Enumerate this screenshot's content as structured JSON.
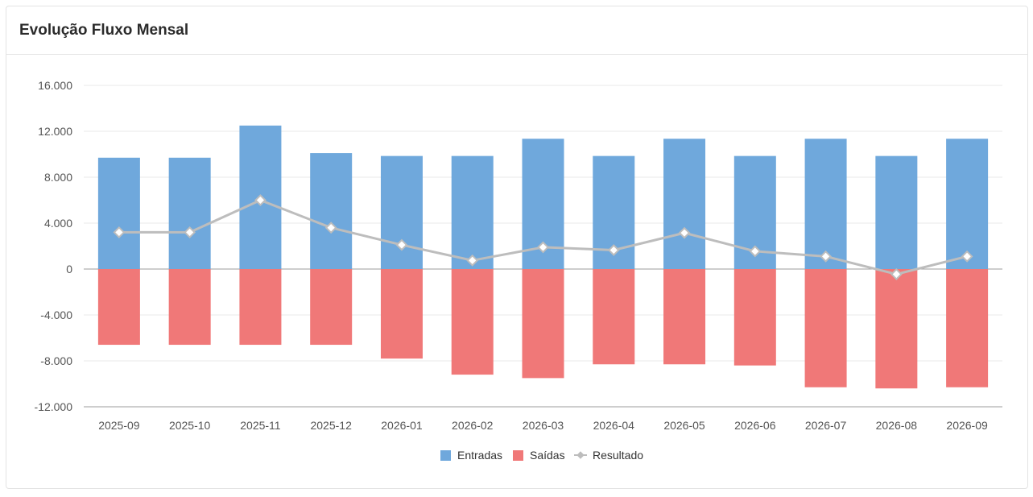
{
  "card": {
    "title": "Evolução Fluxo Mensal"
  },
  "colors": {
    "entradas": "#6fa8dc",
    "saidas": "#f07878",
    "resultado": "#bdbdbd"
  },
  "chart_data": {
    "type": "bar",
    "categories": [
      "2025-09",
      "2025-10",
      "2025-11",
      "2025-12",
      "2026-01",
      "2026-02",
      "2026-03",
      "2026-04",
      "2026-05",
      "2026-06",
      "2026-07",
      "2026-08",
      "2026-09"
    ],
    "series": [
      {
        "name": "Entradas",
        "type": "bar",
        "values": [
          9700,
          9700,
          12500,
          10100,
          9850,
          9850,
          11350,
          9850,
          11350,
          9850,
          11350,
          9850,
          11350
        ]
      },
      {
        "name": "Saídas",
        "type": "bar",
        "values": [
          -6600,
          -6600,
          -6600,
          -6600,
          -7800,
          -9200,
          -9500,
          -8300,
          -8300,
          -8400,
          -10300,
          -10400,
          -10300
        ]
      },
      {
        "name": "Resultado",
        "type": "line",
        "values": [
          3200,
          3200,
          6000,
          3600,
          2100,
          750,
          1900,
          1650,
          3150,
          1550,
          1100,
          -450,
          1100
        ]
      }
    ],
    "y_ticks": [
      "16.000",
      "12.000",
      "8.000",
      "4.000",
      "0",
      "-4.000",
      "-8.000",
      "-12.000"
    ],
    "ylim": [
      -12000,
      16000
    ],
    "grid": true,
    "legend": "bottom-center"
  }
}
